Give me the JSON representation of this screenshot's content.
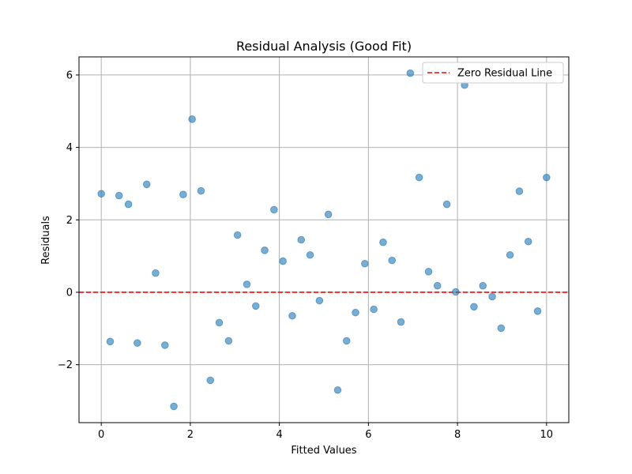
{
  "chart_data": {
    "type": "scatter",
    "title": "Residual Analysis (Good Fit)",
    "xlabel": "Fitted Values",
    "ylabel": "Residuals",
    "xlim": [
      -0.5,
      10.5
    ],
    "ylim": [
      -3.6,
      6.5
    ],
    "xticks": [
      0,
      2,
      4,
      6,
      8,
      10
    ],
    "xtick_labels": [
      "0",
      "2",
      "4",
      "6",
      "8",
      "10"
    ],
    "yticks": [
      -2,
      0,
      2,
      4,
      6
    ],
    "ytick_labels": [
      "−2",
      "0",
      "2",
      "4",
      "6"
    ],
    "grid": true,
    "legend_position": "top-right",
    "legend": [
      "Zero Residual Line"
    ],
    "reference_line": {
      "y": 0,
      "style": "dashed",
      "color": "#ff0000",
      "label": "Zero Residual Line"
    },
    "point_color": "#1f77b4",
    "x": [
      0.0,
      0.2,
      0.4,
      0.61,
      0.81,
      1.02,
      1.22,
      1.43,
      1.63,
      1.84,
      2.04,
      2.24,
      2.45,
      2.65,
      2.86,
      3.06,
      3.27,
      3.47,
      3.67,
      3.88,
      4.08,
      4.29,
      4.49,
      4.69,
      4.9,
      5.1,
      5.31,
      5.51,
      5.71,
      5.92,
      6.12,
      6.33,
      6.53,
      6.73,
      6.94,
      7.14,
      7.35,
      7.55,
      7.76,
      7.96,
      8.16,
      8.37,
      8.57,
      8.78,
      8.98,
      9.18,
      9.39,
      9.59,
      9.8,
      10.0
    ],
    "y": [
      2.72,
      -1.36,
      2.67,
      2.43,
      -1.4,
      2.98,
      0.53,
      -1.46,
      -3.15,
      2.7,
      4.78,
      2.8,
      -2.43,
      -0.84,
      -1.34,
      1.58,
      0.22,
      -0.38,
      1.16,
      2.28,
      0.86,
      -0.65,
      1.45,
      1.03,
      -0.23,
      2.15,
      -2.7,
      -1.34,
      -0.56,
      0.79,
      -0.47,
      1.38,
      0.88,
      -0.82,
      6.05,
      3.17,
      0.57,
      0.18,
      2.43,
      0.01,
      5.72,
      -0.4,
      0.18,
      -0.12,
      -0.99,
      1.03,
      2.79,
      1.4,
      -0.52,
      3.17
    ]
  }
}
